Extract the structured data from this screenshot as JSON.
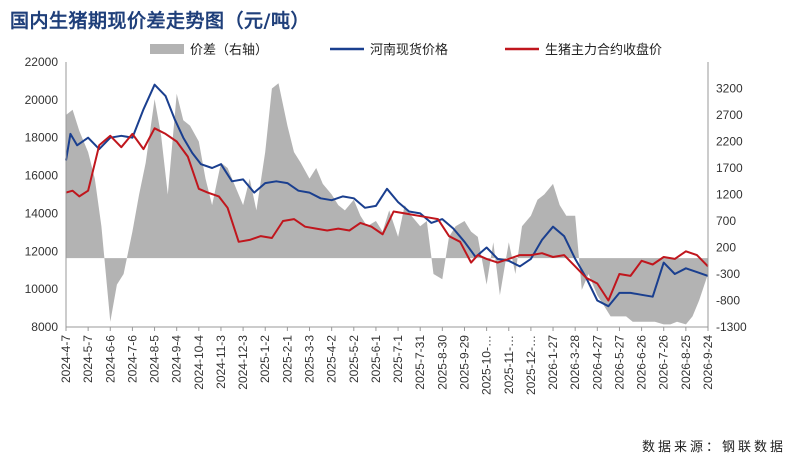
{
  "title": "国内生猪期现价差走势图（元/吨）",
  "source": "数据来源：钢联数据",
  "colors": {
    "spread": "#b3b3b3",
    "spot": "#1a3f8f",
    "futures": "#c0161d",
    "title": "#1f3f7a"
  },
  "chart_data": {
    "type": "line",
    "title": "国内生猪期现价差走势图（元/吨）",
    "legend_position": "top",
    "x_tick_labels": [
      "2024-4-7",
      "2024-5-7",
      "2024-6-6",
      "2024-7-6",
      "2024-8-5",
      "2024-9-4",
      "2024-10-4",
      "2024-11-3",
      "2024-12-3",
      "2025-1-2",
      "2025-2-1",
      "2025-3-3",
      "2025-4-2",
      "2025-5-2",
      "2025-6-1",
      "2025-7-1",
      "2025-7-31",
      "2025-8-30",
      "2025-9-29",
      "2025-10-…",
      "2025-11-…",
      "2025-12-…",
      "2026-1-27",
      "2026-3-28",
      "2026-4-27",
      "2026-5-27",
      "2026-6-26",
      "2026-7-26",
      "2026-8-25",
      "2026-9-24"
    ],
    "y_left": {
      "min": 8000,
      "max": 22000,
      "ticks": [
        8000,
        10000,
        12000,
        14000,
        16000,
        18000,
        20000,
        22000
      ]
    },
    "y_right": {
      "min": -1300,
      "max": 3700,
      "ticks": [
        -1300,
        -800,
        -300,
        200,
        700,
        1200,
        1700,
        2200,
        2700,
        3200
      ]
    },
    "series": [
      {
        "name": "价差（右轴）",
        "type": "area",
        "axis": "right",
        "x": [
          0,
          0.3,
          0.6,
          1.0,
          1.3,
          1.6,
          2.0,
          2.3,
          2.6,
          3.0,
          3.3,
          3.6,
          4.0,
          4.3,
          4.6,
          5.0,
          5.3,
          5.6,
          6.0,
          6.3,
          6.6,
          7.0,
          7.3,
          7.6,
          8.0,
          8.3,
          8.6,
          9.0,
          9.3,
          9.6,
          10.0,
          10.3,
          10.6,
          11.0,
          11.3,
          11.6,
          12.0,
          12.3,
          12.6,
          13.0,
          13.3,
          13.6,
          14.0,
          14.3,
          14.6,
          15.0,
          15.3,
          15.6,
          16.0,
          16.3,
          16.6,
          17.0,
          17.3,
          17.6,
          18.0,
          18.3,
          18.6,
          19.0,
          19.3,
          19.6,
          20.0,
          20.3,
          20.6,
          21.0,
          21.3,
          21.6,
          22.0,
          22.3,
          22.6,
          23.0,
          23.3,
          23.6,
          24.0,
          24.3,
          24.6,
          25.0,
          25.3,
          25.6,
          26.0,
          26.3,
          26.6,
          27.0,
          27.3,
          27.6,
          28.0,
          28.3,
          28.6,
          29.0
        ],
        "values": [
          2700,
          2800,
          2400,
          2000,
          1500,
          600,
          -1200,
          -500,
          -300,
          500,
          1200,
          1800,
          3000,
          2300,
          1200,
          3100,
          2600,
          2500,
          2200,
          1500,
          1000,
          1800,
          1700,
          1400,
          1000,
          1500,
          900,
          2000,
          3200,
          3300,
          2500,
          2000,
          1800,
          1500,
          1700,
          1400,
          1200,
          1000,
          900,
          1100,
          800,
          600,
          700,
          500,
          900,
          400,
          1000,
          800,
          600,
          700,
          -300,
          -400,
          400,
          600,
          700,
          500,
          400,
          -500,
          300,
          -700,
          300,
          -300,
          600,
          800,
          1100,
          1200,
          1400,
          1000,
          800,
          800,
          -600,
          -300,
          -700,
          -900,
          -1100,
          -1100,
          -1100,
          -1200,
          -1200,
          -1200,
          -1200,
          -1250,
          -1250,
          -1200,
          -1250,
          -1100,
          -800,
          -300
        ]
      },
      {
        "name": "河南现货价格",
        "type": "line",
        "axis": "left",
        "x": [
          0,
          0.2,
          0.5,
          1.0,
          1.5,
          2.0,
          2.5,
          3.0,
          3.5,
          4.0,
          4.5,
          4.9,
          5.3,
          5.7,
          6.1,
          6.6,
          7.0,
          7.5,
          8.0,
          8.5,
          9.0,
          9.5,
          10.0,
          10.5,
          11.0,
          11.5,
          12.0,
          12.5,
          13.0,
          13.5,
          14.0,
          14.5,
          15.0,
          15.5,
          16.0,
          16.5,
          17.0,
          17.5,
          18.0,
          18.5,
          19.0,
          19.5,
          20.0,
          20.5,
          21.0,
          21.5,
          22.0,
          22.5,
          23.0,
          23.5,
          24.0,
          24.5,
          25.0,
          25.5,
          26.0,
          26.5,
          27.0,
          27.5,
          28.0,
          28.5,
          29.0
        ],
        "values": [
          16800,
          18200,
          17600,
          18000,
          17400,
          18000,
          18100,
          18000,
          19500,
          20800,
          20200,
          19000,
          18000,
          17200,
          16600,
          16400,
          16600,
          15700,
          15800,
          15100,
          15600,
          15700,
          15600,
          15200,
          15100,
          14800,
          14700,
          14900,
          14800,
          14300,
          14400,
          15300,
          14600,
          14100,
          14000,
          13500,
          13700,
          13200,
          12500,
          11700,
          12200,
          11600,
          11500,
          11200,
          11600,
          12600,
          13300,
          12800,
          11600,
          10600,
          9400,
          9100,
          9800,
          9800,
          9700,
          9600,
          11400,
          10800,
          11100,
          10900,
          10700
        ]
      },
      {
        "name": "生猪主力合约收盘价",
        "type": "line",
        "axis": "left",
        "x": [
          0,
          0.3,
          0.6,
          1.0,
          1.5,
          2.0,
          2.5,
          3.0,
          3.5,
          4.0,
          4.5,
          5.0,
          5.5,
          6.0,
          6.4,
          6.9,
          7.3,
          7.8,
          8.3,
          8.8,
          9.3,
          9.8,
          10.3,
          10.8,
          11.3,
          11.8,
          12.3,
          12.8,
          13.3,
          13.8,
          14.3,
          14.8,
          15.3,
          15.8,
          16.3,
          16.8,
          17.3,
          17.8,
          18.3,
          18.6,
          19.0,
          19.5,
          20.0,
          20.5,
          21.0,
          21.5,
          22.0,
          22.5,
          23.0,
          23.5,
          24.0,
          24.5,
          25.0,
          25.5,
          26.0,
          26.5,
          27.0,
          27.5,
          28.0,
          28.5,
          29.0
        ],
        "values": [
          15100,
          15200,
          14900,
          15200,
          17600,
          18100,
          17500,
          18200,
          17400,
          18500,
          18200,
          17800,
          17000,
          15300,
          15100,
          14900,
          14300,
          12500,
          12600,
          12800,
          12700,
          13600,
          13700,
          13300,
          13200,
          13100,
          13200,
          13100,
          13500,
          13300,
          12900,
          14100,
          14000,
          13900,
          13800,
          13700,
          12800,
          12500,
          11400,
          11800,
          11600,
          11400,
          11600,
          11800,
          11800,
          11900,
          11700,
          11800,
          11200,
          10600,
          10300,
          9400,
          10800,
          10700,
          11500,
          11300,
          11700,
          11600,
          12000,
          11800,
          11200
        ]
      }
    ]
  }
}
